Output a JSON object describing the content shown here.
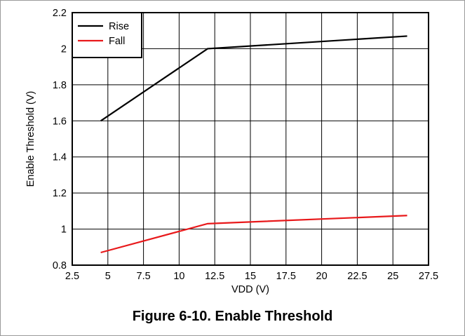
{
  "caption": "Figure 6-10. Enable Threshold",
  "chart_data": {
    "type": "line",
    "title": "",
    "xlabel": "VDD (V)",
    "ylabel": "Enable Threshold (V)",
    "xlim": [
      2.5,
      27.5
    ],
    "ylim": [
      0.8,
      2.2
    ],
    "xticks": [
      2.5,
      5,
      7.5,
      10,
      12.5,
      15,
      17.5,
      20,
      22.5,
      25,
      27.5
    ],
    "xtick_labels": [
      "2.5",
      "5",
      "7.5",
      "10",
      "12.5",
      "15",
      "17.5",
      "20",
      "22.5",
      "25",
      "27.5"
    ],
    "yticks": [
      0.8,
      1,
      1.2,
      1.4,
      1.6,
      1.8,
      2,
      2.2
    ],
    "ytick_labels": [
      "0.8",
      "1",
      "1.2",
      "1.4",
      "1.6",
      "1.8",
      "2",
      "2.2"
    ],
    "grid": true,
    "legend_position": "top-left",
    "series": [
      {
        "name": "Rise",
        "color": "#000000",
        "x": [
          4.5,
          12,
          26
        ],
        "y": [
          1.6,
          2.0,
          2.07
        ]
      },
      {
        "name": "Fall",
        "color": "#e8191b",
        "x": [
          4.5,
          12,
          26
        ],
        "y": [
          0.87,
          1.03,
          1.075
        ]
      }
    ]
  }
}
